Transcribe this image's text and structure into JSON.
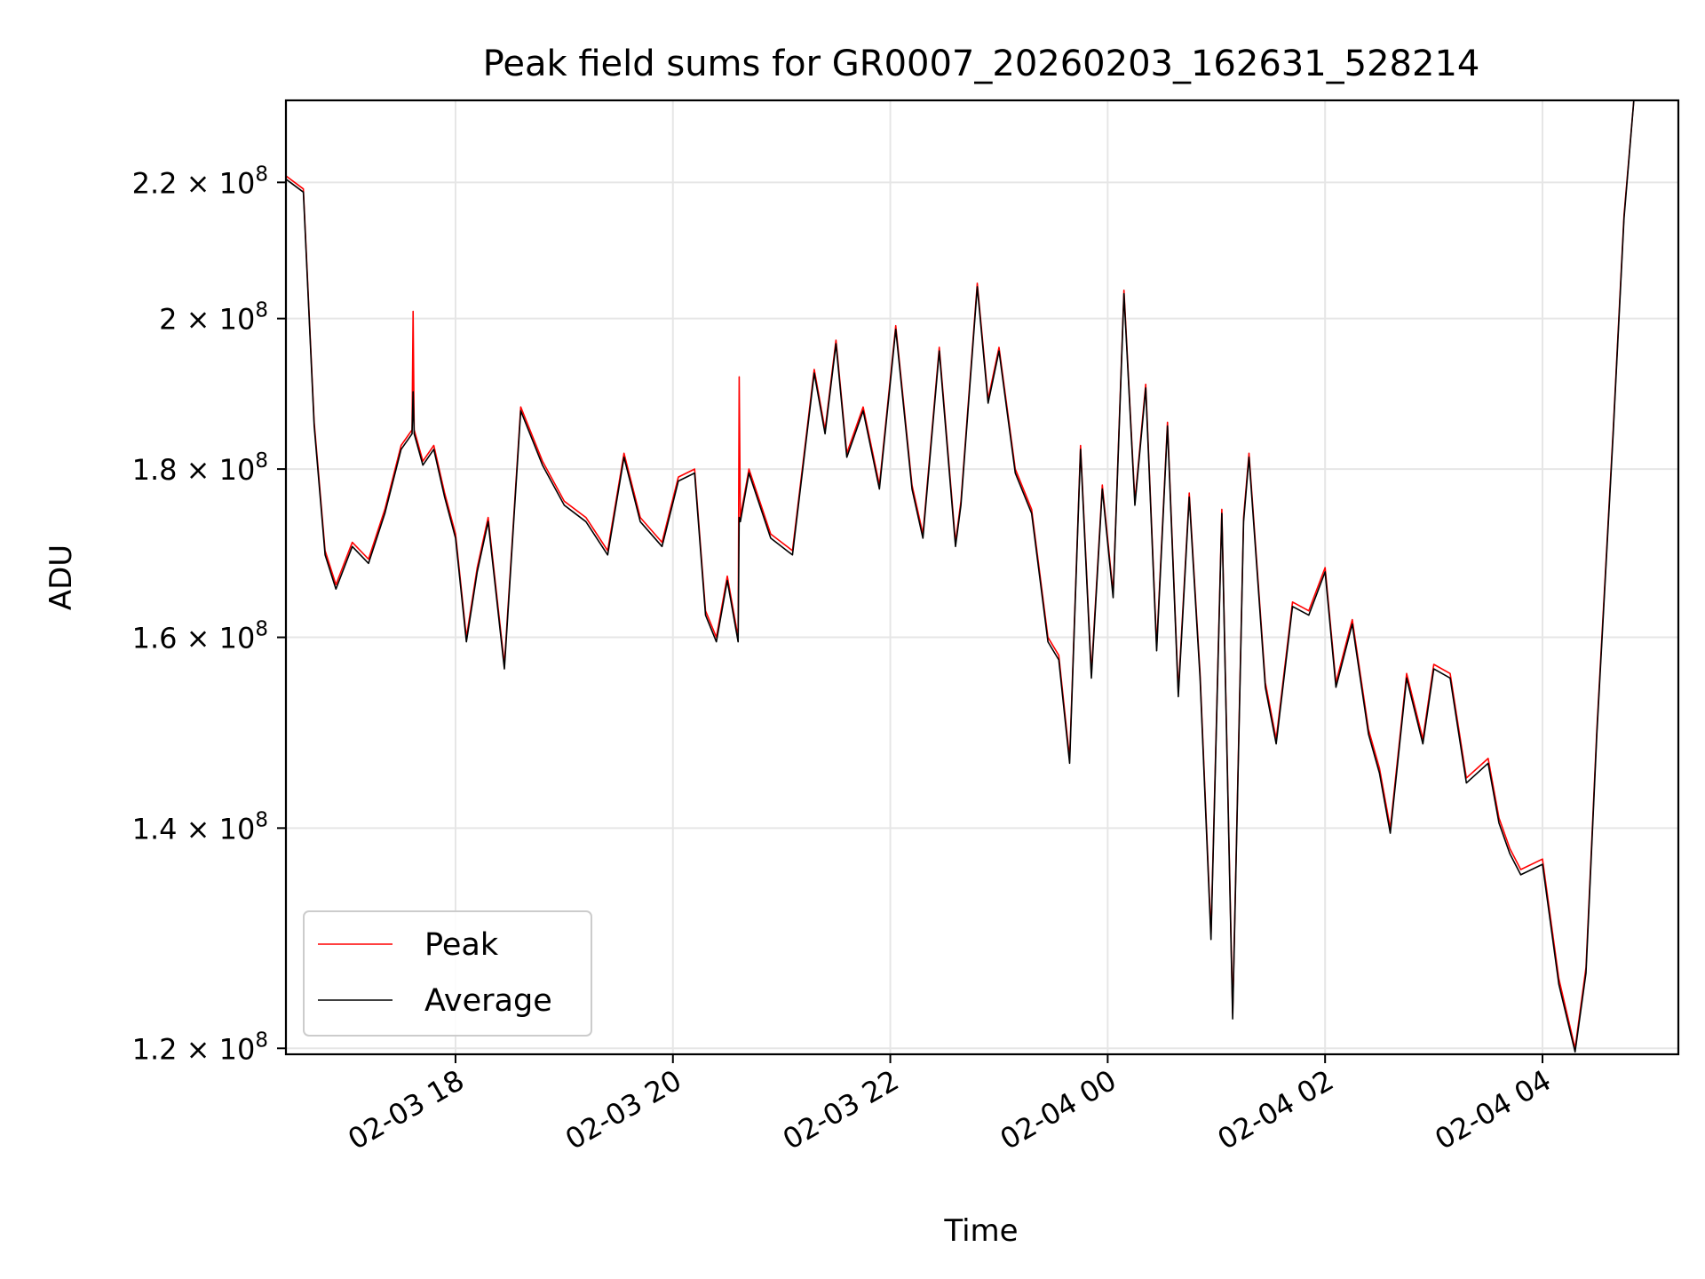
{
  "chart_data": {
    "type": "line",
    "title": "Peak field sums for GR0007_20260203_162631_528214",
    "xlabel": "Time",
    "ylabel": "ADU",
    "yscale": "log",
    "grid": true,
    "legend_position": "lower-left",
    "xlim_hours": [
      16.44,
      29.25
    ],
    "ylim": [
      119500000,
      233000000
    ],
    "x_ticks": [
      {
        "hours": 18,
        "label": "02-03 18"
      },
      {
        "hours": 20,
        "label": "02-03 20"
      },
      {
        "hours": 22,
        "label": "02-03 22"
      },
      {
        "hours": 24,
        "label": "02-04 00"
      },
      {
        "hours": 26,
        "label": "02-04 02"
      },
      {
        "hours": 28,
        "label": "02-04 04"
      }
    ],
    "y_ticks": [
      {
        "value": 120000000,
        "mantissa": "1.2",
        "exponent": "8"
      },
      {
        "value": 140000000,
        "mantissa": "1.4",
        "exponent": "8"
      },
      {
        "value": 160000000,
        "mantissa": "1.6",
        "exponent": "8"
      },
      {
        "value": 180000000,
        "mantissa": "1.8",
        "exponent": "8"
      },
      {
        "value": 200000000,
        "mantissa": "2",
        "exponent": "8"
      },
      {
        "value": 220000000,
        "mantissa": "2.2",
        "exponent": "8"
      }
    ],
    "series": [
      {
        "name": "Peak",
        "color": "#ff0000",
        "x_hours": [
          16.44,
          16.6,
          16.7,
          16.8,
          16.9,
          17.05,
          17.2,
          17.35,
          17.5,
          17.6,
          17.61,
          17.62,
          17.7,
          17.8,
          17.9,
          18.0,
          18.1,
          18.2,
          18.3,
          18.45,
          18.6,
          18.8,
          19.0,
          19.2,
          19.4,
          19.55,
          19.7,
          19.9,
          20.05,
          20.2,
          20.3,
          20.4,
          20.5,
          20.6,
          20.61,
          20.62,
          20.7,
          20.9,
          21.1,
          21.3,
          21.4,
          21.5,
          21.6,
          21.75,
          21.9,
          22.05,
          22.2,
          22.3,
          22.45,
          22.6,
          22.65,
          22.8,
          22.9,
          23.0,
          23.15,
          23.3,
          23.45,
          23.55,
          23.65,
          23.75,
          23.85,
          23.95,
          24.05,
          24.15,
          24.25,
          24.35,
          24.45,
          24.55,
          24.65,
          24.75,
          24.85,
          24.95,
          25.05,
          25.15,
          25.25,
          25.3,
          25.45,
          25.55,
          25.7,
          25.85,
          26.0,
          26.1,
          26.25,
          26.4,
          26.5,
          26.6,
          26.75,
          26.9,
          27.0,
          27.15,
          27.3,
          27.5,
          27.6,
          27.7,
          27.8,
          28.0,
          28.15,
          28.3,
          28.4,
          28.5,
          28.65,
          28.75,
          28.85,
          28.95,
          29.05,
          29.15,
          29.25
        ],
        "values": [
          221000000,
          219000000,
          186000000,
          170000000,
          166000000,
          171000000,
          169000000,
          175000000,
          183000000,
          185000000,
          201000000,
          185000000,
          181000000,
          183000000,
          177000000,
          172000000,
          160000000,
          168000000,
          174000000,
          157000000,
          188000000,
          181000000,
          176000000,
          174000000,
          170000000,
          182000000,
          174000000,
          171000000,
          179000000,
          180000000,
          163000000,
          160000000,
          167000000,
          160000000,
          192000000,
          174000000,
          180000000,
          172000000,
          170000000,
          193000000,
          185000000,
          197000000,
          182000000,
          188000000,
          178000000,
          199000000,
          178000000,
          172000000,
          196000000,
          171000000,
          176000000,
          205000000,
          189000000,
          196000000,
          180000000,
          175000000,
          160000000,
          158000000,
          147000000,
          183000000,
          156000000,
          178000000,
          165000000,
          204000000,
          176000000,
          191000000,
          159000000,
          186000000,
          154000000,
          177000000,
          156000000,
          130000000,
          175000000,
          123000000,
          174000000,
          182000000,
          155000000,
          149000000,
          164000000,
          163000000,
          168000000,
          155000000,
          162000000,
          150000000,
          146000000,
          140000000,
          156000000,
          149000000,
          157000000,
          156000000,
          145000000,
          147000000,
          141000000,
          138000000,
          136000000,
          137000000,
          126000000,
          120000000,
          127000000,
          150000000,
          185000000,
          215000000,
          235000000,
          240000000,
          240000000,
          240000000,
          240000000
        ]
      },
      {
        "name": "Average",
        "color": "#000000",
        "x_hours": [
          16.44,
          16.6,
          16.7,
          16.8,
          16.9,
          17.05,
          17.2,
          17.35,
          17.5,
          17.6,
          17.61,
          17.62,
          17.7,
          17.8,
          17.9,
          18.0,
          18.1,
          18.2,
          18.3,
          18.45,
          18.6,
          18.8,
          19.0,
          19.2,
          19.4,
          19.55,
          19.7,
          19.9,
          20.05,
          20.2,
          20.3,
          20.4,
          20.5,
          20.6,
          20.61,
          20.62,
          20.7,
          20.9,
          21.1,
          21.3,
          21.4,
          21.5,
          21.6,
          21.75,
          21.9,
          22.05,
          22.2,
          22.3,
          22.45,
          22.6,
          22.65,
          22.8,
          22.9,
          23.0,
          23.15,
          23.3,
          23.45,
          23.55,
          23.65,
          23.75,
          23.85,
          23.95,
          24.05,
          24.15,
          24.25,
          24.35,
          24.45,
          24.55,
          24.65,
          24.75,
          24.85,
          24.95,
          25.05,
          25.15,
          25.25,
          25.3,
          25.45,
          25.55,
          25.7,
          25.85,
          26.0,
          26.1,
          26.25,
          26.4,
          26.5,
          26.6,
          26.75,
          26.9,
          27.0,
          27.15,
          27.3,
          27.5,
          27.6,
          27.7,
          27.8,
          28.0,
          28.15,
          28.3,
          28.4,
          28.5,
          28.65,
          28.75,
          28.85,
          28.95,
          29.05,
          29.15,
          29.25
        ],
        "values": [
          220500000,
          218500000,
          185500000,
          169500000,
          165500000,
          170500000,
          168500000,
          174500000,
          182500000,
          184500000,
          190000000,
          184500000,
          180500000,
          182500000,
          176500000,
          171500000,
          159500000,
          167500000,
          173500000,
          156500000,
          187500000,
          180500000,
          175500000,
          173500000,
          169500000,
          181500000,
          173500000,
          170500000,
          178500000,
          179500000,
          162500000,
          159500000,
          166500000,
          159500000,
          174000000,
          173500000,
          179500000,
          171500000,
          169500000,
          192500000,
          184500000,
          196500000,
          181500000,
          187500000,
          177500000,
          198500000,
          177500000,
          171500000,
          195500000,
          170500000,
          175500000,
          204500000,
          188500000,
          195500000,
          179500000,
          174500000,
          159500000,
          157500000,
          146500000,
          182500000,
          155500000,
          177500000,
          164500000,
          203500000,
          175500000,
          190500000,
          158500000,
          185500000,
          153500000,
          176500000,
          155500000,
          129500000,
          174500000,
          122500000,
          173500000,
          181500000,
          154500000,
          148500000,
          163500000,
          162500000,
          167500000,
          154500000,
          161500000,
          149500000,
          145500000,
          139500000,
          155500000,
          148500000,
          156500000,
          155500000,
          144500000,
          146500000,
          140500000,
          137500000,
          135500000,
          136500000,
          125500000,
          119700000,
          126500000,
          149500000,
          184500000,
          214500000,
          235000000,
          240000000,
          240000000,
          240000000,
          240000000
        ]
      }
    ]
  }
}
